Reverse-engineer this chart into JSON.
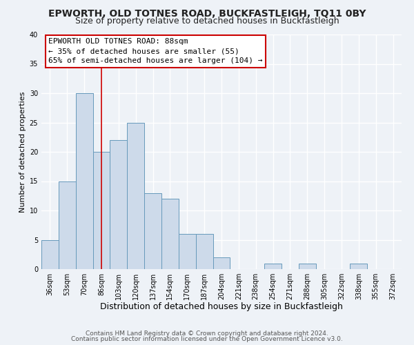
{
  "title": "EPWORTH, OLD TOTNES ROAD, BUCKFASTLEIGH, TQ11 0BY",
  "subtitle": "Size of property relative to detached houses in Buckfastleigh",
  "xlabel": "Distribution of detached houses by size in Buckfastleigh",
  "ylabel": "Number of detached properties",
  "bin_labels": [
    "36sqm",
    "53sqm",
    "70sqm",
    "86sqm",
    "103sqm",
    "120sqm",
    "137sqm",
    "154sqm",
    "170sqm",
    "187sqm",
    "204sqm",
    "221sqm",
    "238sqm",
    "254sqm",
    "271sqm",
    "288sqm",
    "305sqm",
    "322sqm",
    "338sqm",
    "355sqm",
    "372sqm"
  ],
  "bin_values": [
    5,
    15,
    30,
    20,
    22,
    25,
    13,
    12,
    6,
    6,
    2,
    0,
    0,
    1,
    0,
    1,
    0,
    0,
    1,
    0,
    0
  ],
  "bar_color": "#cddaea",
  "bar_edge_color": "#6699bb",
  "vline_x_index": 3,
  "vline_color": "#cc0000",
  "annotation_text": "EPWORTH OLD TOTNES ROAD: 88sqm\n← 35% of detached houses are smaller (55)\n65% of semi-detached houses are larger (104) →",
  "annotation_box_edgecolor": "#cc0000",
  "annotation_box_facecolor": "#ffffff",
  "ylim": [
    0,
    40
  ],
  "yticks": [
    0,
    5,
    10,
    15,
    20,
    25,
    30,
    35,
    40
  ],
  "footer_line1": "Contains HM Land Registry data © Crown copyright and database right 2024.",
  "footer_line2": "Contains public sector information licensed under the Open Government Licence v3.0.",
  "background_color": "#eef2f7",
  "grid_color": "#ffffff",
  "title_fontsize": 10,
  "subtitle_fontsize": 9,
  "xlabel_fontsize": 9,
  "ylabel_fontsize": 8,
  "tick_fontsize": 7,
  "annotation_fontsize": 8,
  "footer_fontsize": 6.5
}
